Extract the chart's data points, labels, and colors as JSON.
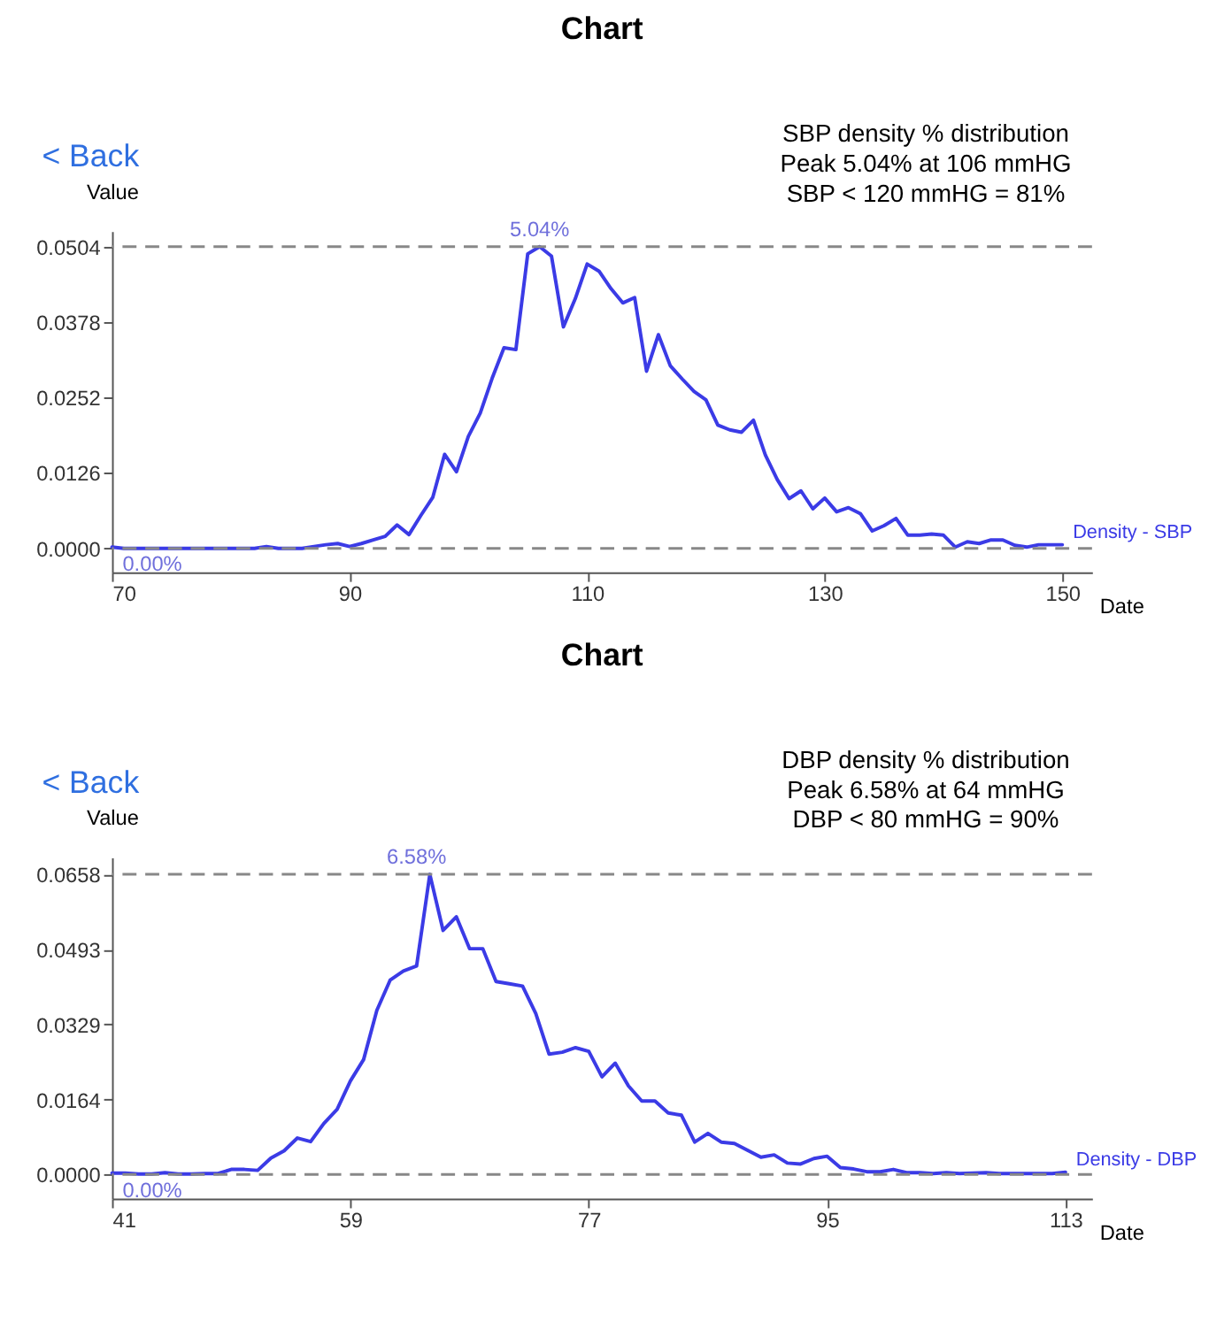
{
  "chart_data": [
    {
      "type": "line",
      "title": "Chart",
      "subtitle": "< Back",
      "xlabel": "Date",
      "ylabel": "Value",
      "x": [
        70,
        71,
        72,
        73,
        74,
        75,
        76,
        77,
        78,
        79,
        80,
        81,
        82,
        83,
        84,
        85,
        86,
        87,
        88,
        89,
        90,
        91,
        92,
        93,
        94,
        95,
        96,
        97,
        98,
        99,
        100,
        101,
        102,
        103,
        104,
        105,
        106,
        107,
        108,
        109,
        110,
        111,
        112,
        113,
        114,
        115,
        116,
        117,
        118,
        119,
        120,
        121,
        122,
        123,
        124,
        125,
        126,
        127,
        128,
        129,
        130,
        131,
        132,
        133,
        134,
        135,
        136,
        137,
        138,
        139,
        140,
        141,
        142,
        143,
        144,
        145,
        146,
        147,
        148,
        149,
        150
      ],
      "series": [
        {
          "name": "Density - SBP",
          "color": "#3b3be6",
          "values": [
            0.0002,
            0,
            0,
            0,
            0,
            0,
            0,
            0,
            0,
            0,
            0,
            0,
            0,
            0.0003,
            0,
            0,
            0,
            0.0003,
            0.0006,
            0.0008,
            0.0003,
            0.0008,
            0.0014,
            0.002,
            0.0039,
            0.0023,
            0.0055,
            0.0085,
            0.0157,
            0.0128,
            0.0187,
            0.0226,
            0.0284,
            0.0335,
            0.0332,
            0.0492,
            0.0504,
            0.0488,
            0.037,
            0.0417,
            0.0475,
            0.0463,
            0.0434,
            0.041,
            0.0419,
            0.0296,
            0.0357,
            0.0305,
            0.0283,
            0.0262,
            0.0248,
            0.0206,
            0.0198,
            0.0194,
            0.0214,
            0.0156,
            0.0115,
            0.0083,
            0.0096,
            0.0066,
            0.0084,
            0.0061,
            0.0068,
            0.0058,
            0.0029,
            0.0038,
            0.005,
            0.0022,
            0.0022,
            0.0024,
            0.0022,
            0.0002,
            0.0011,
            0.0008,
            0.0014,
            0.0014,
            0.0005,
            0.0002,
            0.0006,
            0.0006,
            0.0006
          ]
        }
      ],
      "xlim": [
        70,
        152.5
      ],
      "xticks": [
        70,
        90,
        110,
        130,
        150
      ],
      "ylim": [
        -0.004,
        0.053
      ],
      "yticks": [
        {
          "value": 0,
          "label": "0.0000"
        },
        0.0126,
        0.0252,
        0.0378,
        0.0504
      ],
      "ref_lines": [
        {
          "axis": "y",
          "value": 0.0504,
          "color": "#888888",
          "line_style": "dashed"
        },
        {
          "axis": "y",
          "value": 0,
          "color": "#888888",
          "line_style": "dashed"
        }
      ],
      "annotations": [
        {
          "text": "5.04%",
          "x": 106,
          "y": 0.0504
        },
        {
          "text": "0.00%",
          "x": 70,
          "y": 0
        },
        "SBP density % distribution",
        "Peak 5.04% at 106 mmHG",
        "SBP < 120 mmHG = 81%"
      ],
      "grid": false,
      "marker": "none",
      "line_style": "solid"
    },
    {
      "type": "line",
      "title": "Chart",
      "subtitle": "< Back",
      "xlabel": "Date",
      "ylabel": "Value",
      "x": [
        41,
        42,
        43,
        44,
        45,
        46,
        47,
        48,
        49,
        50,
        51,
        52,
        53,
        54,
        55,
        56,
        57,
        58,
        59,
        60,
        61,
        62,
        63,
        64,
        65,
        66,
        67,
        68,
        69,
        70,
        71,
        72,
        73,
        74,
        75,
        76,
        77,
        78,
        79,
        80,
        81,
        82,
        83,
        84,
        85,
        86,
        87,
        88,
        89,
        90,
        91,
        92,
        93,
        94,
        95,
        96,
        97,
        98,
        99,
        100,
        101,
        102,
        103,
        104,
        105,
        106,
        107,
        108,
        109,
        110,
        111,
        112,
        113
      ],
      "series": [
        {
          "name": "Density - DBP",
          "color": "#3b3be6",
          "values": [
            0.0003,
            0.0003,
            0.0001,
            0.0001,
            0.0004,
            0.0001,
            0.0001,
            0.0002,
            0.0002,
            0.0011,
            0.0011,
            0.0009,
            0.0036,
            0.0052,
            0.008,
            0.0072,
            0.0112,
            0.0143,
            0.0205,
            0.0252,
            0.036,
            0.0426,
            0.0446,
            0.0457,
            0.0658,
            0.0535,
            0.0565,
            0.0495,
            0.0495,
            0.0423,
            0.0418,
            0.0413,
            0.0353,
            0.0264,
            0.0268,
            0.0278,
            0.027,
            0.0214,
            0.0244,
            0.0194,
            0.0161,
            0.0161,
            0.0135,
            0.013,
            0.0071,
            0.009,
            0.0071,
            0.0068,
            0.0053,
            0.0038,
            0.0043,
            0.0025,
            0.0023,
            0.0035,
            0.004,
            0.0015,
            0.0012,
            0.0006,
            0.0006,
            0.0011,
            0.0004,
            0.0004,
            0.0002,
            0.0004,
            0.0002,
            0.0003,
            0.0004,
            0.0002,
            0.0002,
            0.0002,
            0.0002,
            0.0002,
            0.0005
          ]
        }
      ],
      "xlim": [
        41,
        115
      ],
      "xticks": [
        41,
        59,
        77,
        95,
        113
      ],
      "ylim": [
        -0.0053,
        0.0695
      ],
      "yticks": [
        {
          "value": 0,
          "label": "0.0000"
        },
        0.0164,
        0.0329,
        0.0493,
        0.0658
      ],
      "ref_lines": [
        {
          "axis": "y",
          "value": 0.0658,
          "color": "#888888",
          "line_style": "dashed"
        },
        {
          "axis": "y",
          "value": 0,
          "color": "#888888",
          "line_style": "dashed"
        }
      ],
      "annotations": [
        {
          "text": "6.58%",
          "x": 64,
          "y": 0.0658
        },
        {
          "text": "0.00%",
          "x": 41,
          "y": 0
        },
        "DBP density % distribution",
        "Peak 6.58% at 64 mmHG",
        "DBP < 80 mmHG = 90%"
      ],
      "grid": false,
      "marker": "none",
      "line_style": "solid"
    }
  ]
}
